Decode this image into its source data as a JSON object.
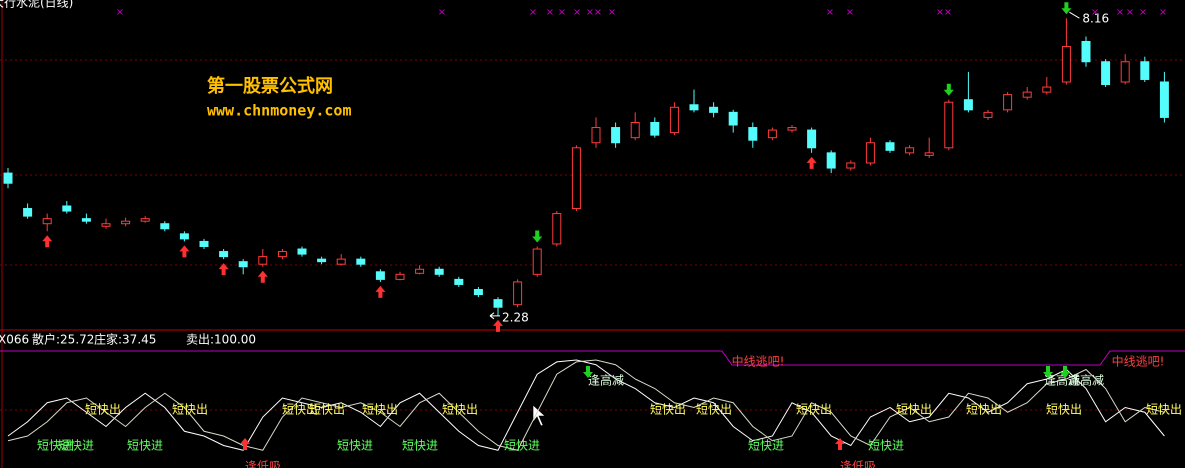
{
  "chart_data": [
    {
      "type": "candlestick",
      "title": "大行水泥(日线)",
      "watermark": [
        "第一股票公式网",
        "www.chnmoney.com"
      ],
      "ohlc": [
        [
          5.1,
          5.2,
          4.8,
          4.9
        ],
        [
          4.4,
          4.5,
          4.2,
          4.25
        ],
        [
          4.1,
          4.3,
          3.95,
          4.2
        ],
        [
          4.45,
          4.55,
          4.3,
          4.35
        ],
        [
          4.2,
          4.3,
          4.1,
          4.15
        ],
        [
          4.05,
          4.2,
          4.0,
          4.1
        ],
        [
          4.1,
          4.22,
          4.05,
          4.15
        ],
        [
          4.15,
          4.25,
          4.12,
          4.2
        ],
        [
          4.1,
          4.15,
          3.95,
          4.0
        ],
        [
          3.9,
          3.95,
          3.75,
          3.8
        ],
        [
          3.75,
          3.8,
          3.6,
          3.65
        ],
        [
          3.55,
          3.6,
          3.4,
          3.45
        ],
        [
          3.35,
          3.4,
          3.1,
          3.25
        ],
        [
          3.3,
          3.6,
          3.25,
          3.45
        ],
        [
          3.45,
          3.6,
          3.4,
          3.55
        ],
        [
          3.6,
          3.65,
          3.45,
          3.5
        ],
        [
          3.4,
          3.45,
          3.3,
          3.35
        ],
        [
          3.3,
          3.5,
          3.28,
          3.4
        ],
        [
          3.4,
          3.45,
          3.25,
          3.3
        ],
        [
          3.15,
          3.2,
          2.95,
          3.0
        ],
        [
          3.0,
          3.15,
          2.98,
          3.1
        ],
        [
          3.12,
          3.28,
          3.1,
          3.2
        ],
        [
          3.2,
          3.25,
          3.05,
          3.1
        ],
        [
          3.0,
          3.05,
          2.85,
          2.9
        ],
        [
          2.8,
          2.85,
          2.65,
          2.7
        ],
        [
          2.6,
          2.65,
          2.28,
          2.45
        ],
        [
          2.5,
          3.0,
          2.45,
          2.95
        ],
        [
          3.1,
          3.65,
          3.05,
          3.6
        ],
        [
          3.7,
          4.35,
          3.65,
          4.3
        ],
        [
          4.4,
          5.65,
          4.35,
          5.6
        ],
        [
          5.7,
          6.2,
          5.6,
          6.0
        ],
        [
          6.0,
          6.1,
          5.6,
          5.7
        ],
        [
          5.8,
          6.3,
          5.75,
          6.1
        ],
        [
          6.1,
          6.2,
          5.8,
          5.85
        ],
        [
          5.9,
          6.5,
          5.85,
          6.4
        ],
        [
          6.45,
          6.75,
          6.3,
          6.35
        ],
        [
          6.4,
          6.5,
          6.2,
          6.3
        ],
        [
          6.3,
          6.35,
          5.9,
          6.05
        ],
        [
          6.0,
          6.1,
          5.6,
          5.75
        ],
        [
          5.8,
          6.0,
          5.75,
          5.95
        ],
        [
          5.95,
          6.05,
          5.9,
          6.0
        ],
        [
          5.95,
          6.0,
          5.5,
          5.6
        ],
        [
          5.5,
          5.55,
          5.1,
          5.2
        ],
        [
          5.2,
          5.35,
          5.15,
          5.3
        ],
        [
          5.3,
          5.8,
          5.25,
          5.7
        ],
        [
          5.7,
          5.75,
          5.5,
          5.55
        ],
        [
          5.5,
          5.65,
          5.45,
          5.6
        ],
        [
          5.45,
          5.8,
          5.4,
          5.5
        ],
        [
          5.6,
          6.55,
          5.55,
          6.5
        ],
        [
          6.55,
          7.1,
          6.3,
          6.35
        ],
        [
          6.2,
          6.35,
          6.15,
          6.3
        ],
        [
          6.35,
          6.7,
          6.3,
          6.65
        ],
        [
          6.6,
          6.8,
          6.55,
          6.7
        ],
        [
          6.7,
          7.0,
          6.65,
          6.8
        ],
        [
          6.9,
          8.16,
          6.85,
          7.6
        ],
        [
          7.7,
          7.8,
          7.2,
          7.3
        ],
        [
          7.3,
          7.35,
          6.8,
          6.85
        ],
        [
          6.9,
          7.45,
          6.85,
          7.3
        ],
        [
          7.3,
          7.4,
          6.9,
          6.95
        ],
        [
          6.9,
          7.1,
          6.1,
          6.2
        ]
      ],
      "up_color": "#ff3c3c",
      "down_color": "#54fcfc",
      "ylim": [
        2.0,
        8.52
      ],
      "high_label": 8.16,
      "low_label": 2.28
    },
    {
      "type": "line",
      "title": "X066",
      "legend": [
        "散户:25.72",
        "庄家:37.45",
        "卖出:100.00"
      ],
      "series": [
        {
          "color": "#ffffff",
          "values": [
            20,
            35,
            55,
            60,
            45,
            30,
            50,
            65,
            50,
            25,
            20,
            10,
            5,
            40,
            60,
            55,
            50,
            55,
            45,
            30,
            55,
            65,
            45,
            25,
            10,
            5,
            45,
            85,
            98,
            100,
            95,
            80,
            70,
            55,
            50,
            60,
            55,
            30,
            15,
            20,
            55,
            45,
            20,
            10,
            40,
            50,
            35,
            40,
            65,
            60,
            45,
            55,
            75,
            80,
            90,
            70,
            35,
            50,
            45,
            20
          ]
        },
        {
          "color": "#d8d8c8",
          "values": [
            15,
            20,
            35,
            55,
            60,
            45,
            30,
            50,
            65,
            50,
            25,
            20,
            10,
            5,
            40,
            60,
            55,
            50,
            55,
            45,
            30,
            55,
            65,
            45,
            25,
            10,
            5,
            45,
            85,
            98,
            100,
            95,
            80,
            70,
            55,
            50,
            60,
            55,
            30,
            15,
            20,
            55,
            45,
            20,
            10,
            40,
            50,
            35,
            40,
            65,
            60,
            45,
            55,
            75,
            80,
            90,
            70,
            35,
            50,
            45
          ]
        }
      ],
      "ylim": [
        0,
        100
      ],
      "sell_labels": [
        "短快出",
        "短快出",
        "短快出",
        "短快出",
        "短快出",
        "短快出",
        "短快出",
        "短快出",
        "短快出",
        "短快出",
        "短快出",
        "短快出",
        "短快出"
      ],
      "buy_labels": [
        "短快进",
        "短快进",
        "短快进",
        "短快进",
        "短快进",
        "短快进",
        "短快进",
        "短快进"
      ],
      "reduce_labels": [
        "逢高减",
        "逢高减",
        "逢高减"
      ],
      "escape_labels": [
        "中线逃吧!",
        "中线逃吧!"
      ],
      "absorb_labels": [
        "逢低吸",
        "逢低吸"
      ]
    }
  ]
}
